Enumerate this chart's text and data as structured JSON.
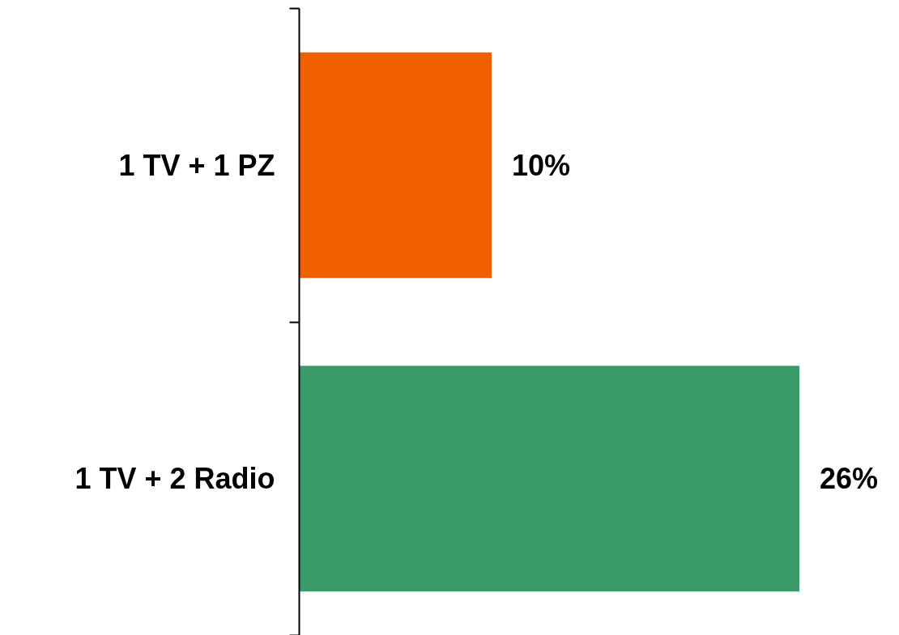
{
  "chart_data": {
    "type": "bar",
    "orientation": "horizontal",
    "categories": [
      "1 TV + 1 PZ",
      "1 TV + 2 Radio"
    ],
    "values": [
      10,
      26
    ],
    "colors": [
      "#f06000",
      "#3a9a6a"
    ],
    "value_labels": [
      "10%",
      "26%"
    ],
    "tick_labels": "y",
    "grid": false
  }
}
